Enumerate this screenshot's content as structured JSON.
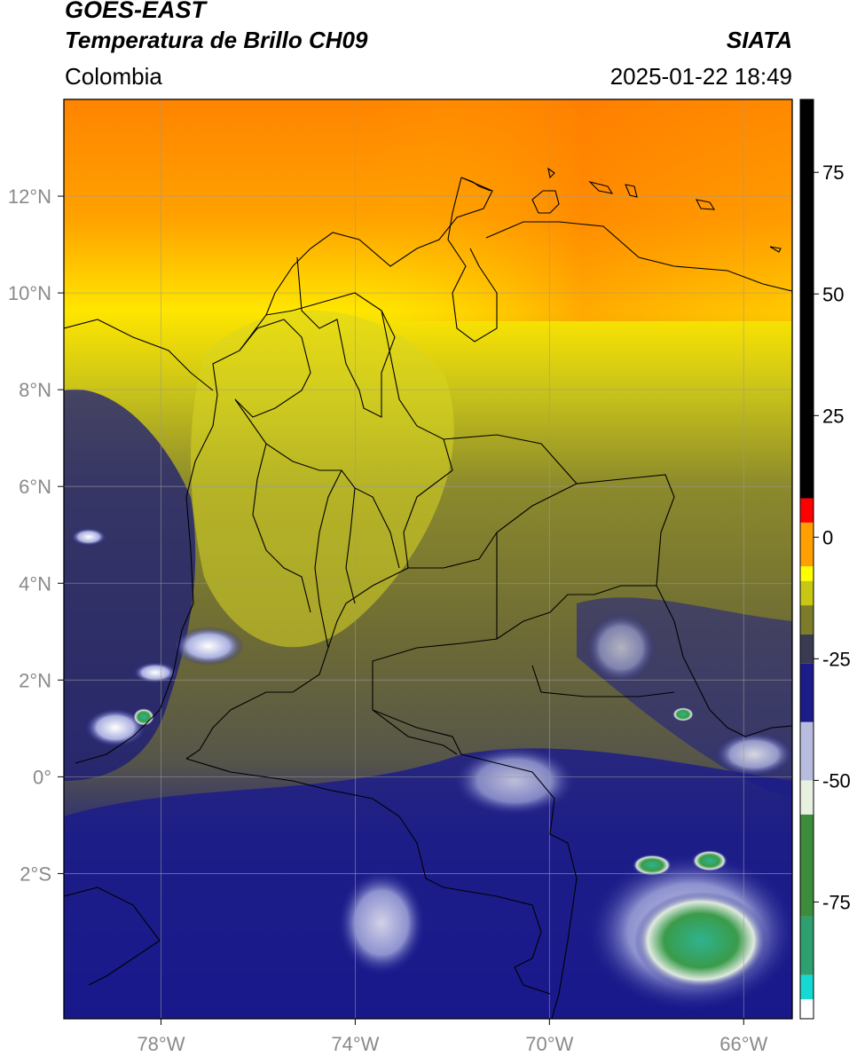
{
  "header": {
    "satellite": "GOES-EAST",
    "product": "Temperatura de Brillo CH09",
    "org": "SIATA",
    "region": "Colombia",
    "datetime": "2025-01-22 18:49"
  },
  "map": {
    "lon_range": [
      -80,
      -65
    ],
    "lat_range": [
      -5,
      14
    ],
    "lon_ticks": [
      {
        "value": -78,
        "label": "78°W"
      },
      {
        "value": -74,
        "label": "74°W"
      },
      {
        "value": -70,
        "label": "70°W"
      },
      {
        "value": -66,
        "label": "66°W"
      }
    ],
    "lat_ticks": [
      {
        "value": 12,
        "label": "12°N"
      },
      {
        "value": 10,
        "label": "10°N"
      },
      {
        "value": 8,
        "label": "8°N"
      },
      {
        "value": 6,
        "label": "6°N"
      },
      {
        "value": 4,
        "label": "4°N"
      },
      {
        "value": 2,
        "label": "2°N"
      },
      {
        "value": 0,
        "label": "0°"
      },
      {
        "value": -2,
        "label": "2°S"
      }
    ],
    "grid": true
  },
  "colorbar": {
    "range": [
      -99,
      90
    ],
    "ticks": [
      {
        "value": 75,
        "label": "75"
      },
      {
        "value": 50,
        "label": "50"
      },
      {
        "value": 25,
        "label": "25"
      },
      {
        "value": 0,
        "label": "0"
      },
      {
        "value": -25,
        "label": "-25"
      },
      {
        "value": -50,
        "label": "-50"
      },
      {
        "value": -75,
        "label": "-75"
      }
    ],
    "colors": [
      "#ffffff",
      "#17d9d3",
      "#2e9f6e",
      "#3c8c3c",
      "#e8f0e0",
      "#b8bddf",
      "#1c1c88",
      "#3a3a52",
      "#7c7c2a",
      "#c8c814",
      "#ffff00",
      "#ffa000",
      "#ff0000",
      "#000000"
    ]
  }
}
